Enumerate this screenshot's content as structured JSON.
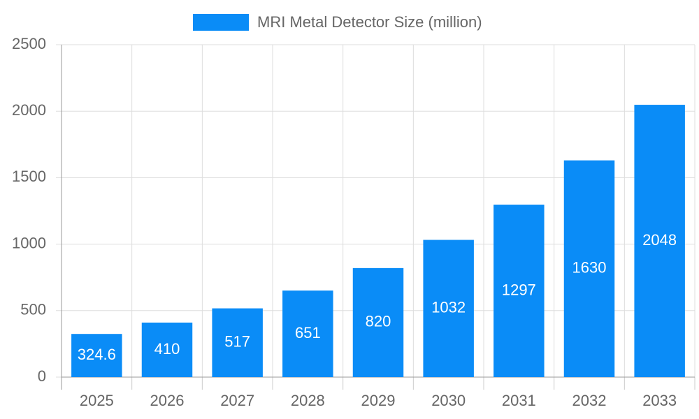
{
  "chart_data": {
    "type": "bar",
    "series": [
      {
        "name": "MRI Metal Detector Size (million)",
        "color": "#0a8cf7",
        "values": [
          324.6,
          410,
          517,
          651,
          820,
          1032,
          1297,
          1630,
          2048
        ]
      }
    ],
    "categories": [
      "2025",
      "2026",
      "2027",
      "2028",
      "2029",
      "2030",
      "2031",
      "2032",
      "2033"
    ],
    "ylim": [
      0,
      2500
    ],
    "yticks": [
      0,
      500,
      1000,
      1500,
      2000,
      2500
    ],
    "grid": true,
    "legend": "top"
  }
}
